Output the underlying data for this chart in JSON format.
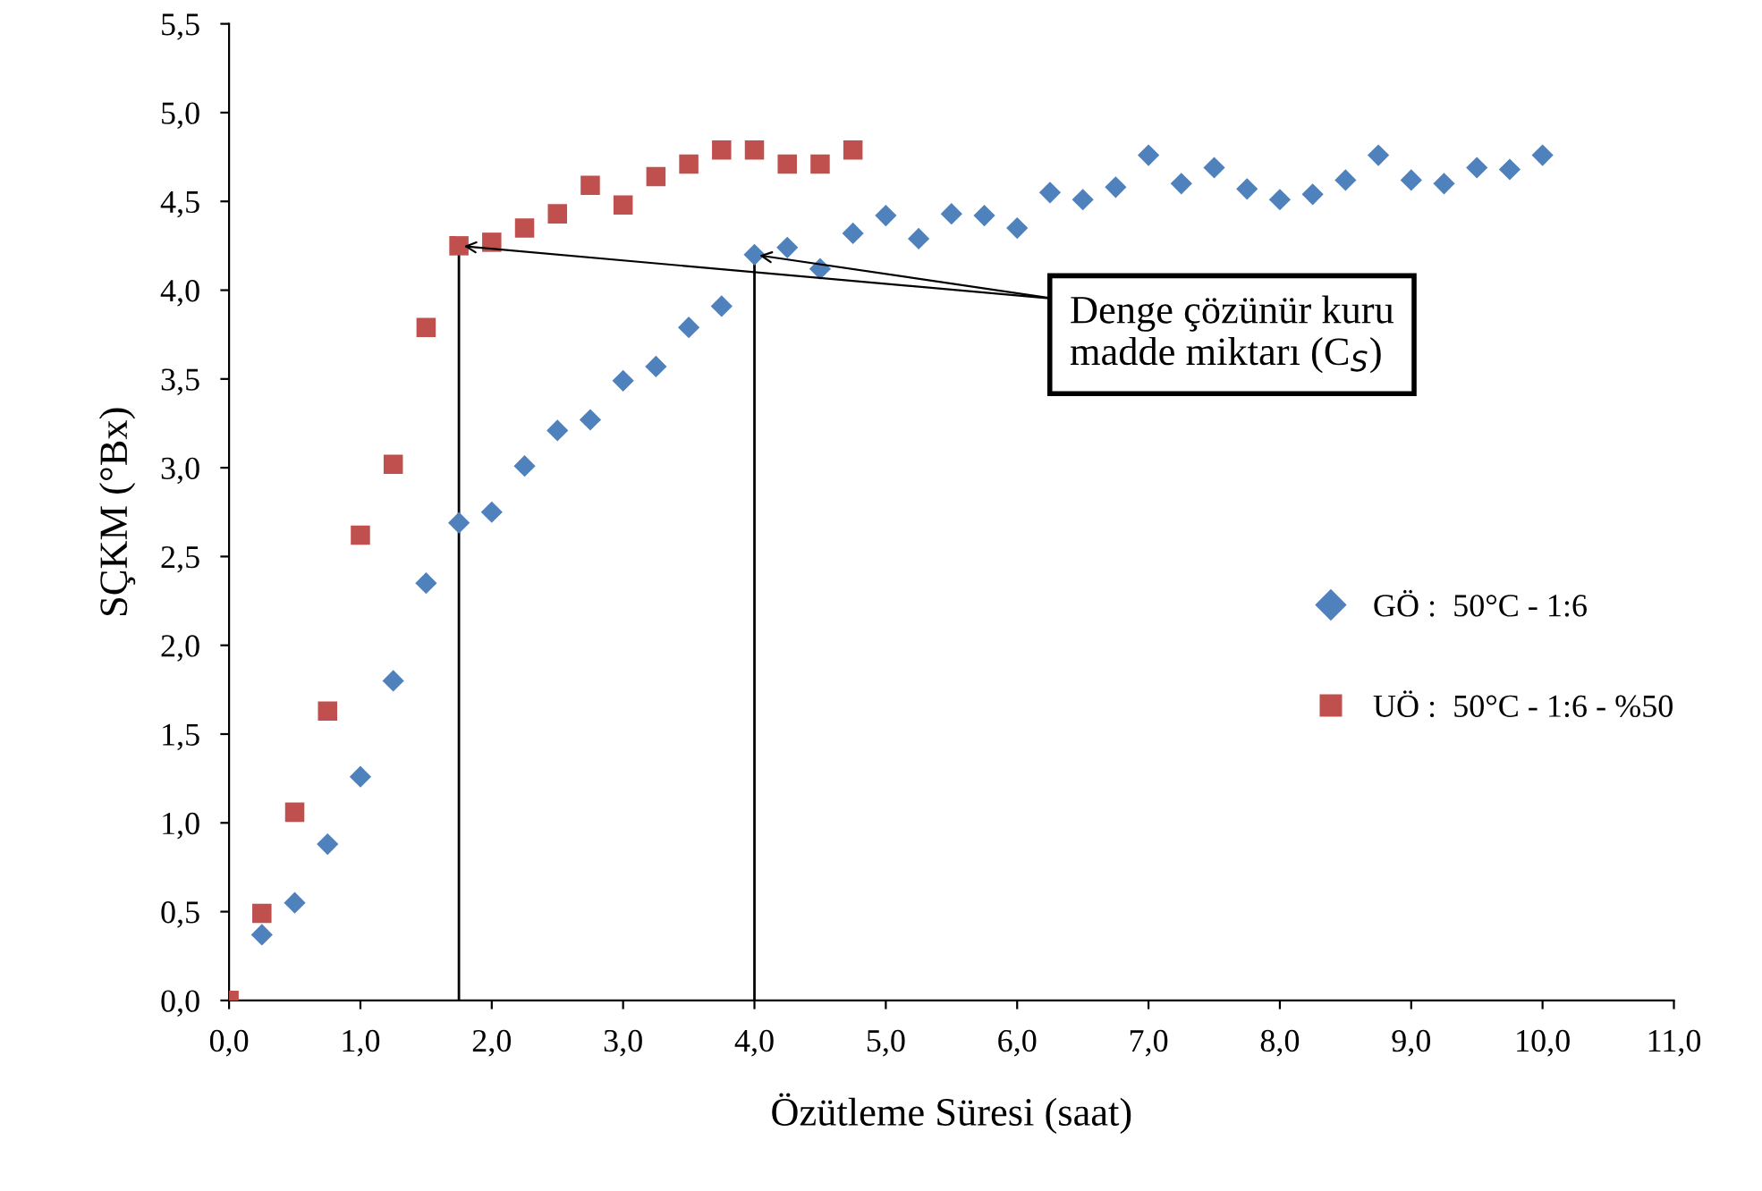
{
  "chart_data": {
    "type": "scatter",
    "xlabel": "Özütleme Süresi (saat)",
    "ylabel": "SÇKM (°Bx)",
    "series": [
      {
        "name": "GÖ :  50°C - 1:6",
        "color": "#4f81bd",
        "marker": "diamond",
        "x": [
          0.25,
          0.5,
          0.75,
          1.0,
          1.25,
          1.5,
          1.75,
          2.0,
          2.25,
          2.5,
          2.75,
          3.0,
          3.25,
          3.5,
          3.75,
          4.0,
          4.25,
          4.5,
          4.75,
          5.0,
          5.25,
          5.5,
          5.75,
          6.0,
          6.25,
          6.5,
          6.75,
          7.0,
          7.25,
          7.5,
          7.75,
          8.0,
          8.25,
          8.5,
          8.75,
          9.0,
          9.25,
          9.5,
          9.75,
          10.0
        ],
        "values": [
          0.37,
          0.55,
          0.88,
          1.26,
          1.8,
          2.35,
          2.69,
          2.75,
          3.01,
          3.21,
          3.27,
          3.49,
          3.57,
          3.79,
          3.91,
          4.2,
          4.24,
          4.12,
          4.32,
          4.42,
          4.29,
          4.43,
          4.42,
          4.35,
          4.55,
          4.51,
          4.58,
          4.76,
          4.6,
          4.69,
          4.57,
          4.51,
          4.54,
          4.62,
          4.76,
          4.62,
          4.6,
          4.69,
          4.68,
          4.76
        ]
      },
      {
        "name": "UÖ :  50°C - 1:6 - %50",
        "color": "#c0504d",
        "marker": "square",
        "x": [
          0.0,
          0.25,
          0.5,
          0.75,
          1.0,
          1.25,
          1.5,
          1.75,
          2.0,
          2.25,
          2.5,
          2.75,
          3.0,
          3.25,
          3.5,
          3.75,
          4.0,
          4.25,
          4.5,
          4.75
        ],
        "values": [
          0.0,
          0.49,
          1.06,
          1.63,
          2.62,
          3.02,
          3.79,
          4.25,
          4.27,
          4.35,
          4.43,
          4.59,
          4.48,
          4.64,
          4.71,
          4.79,
          4.79,
          4.71,
          4.71,
          4.79
        ]
      }
    ],
    "xlim": [
      0,
      11
    ],
    "ylim": [
      0,
      5.5
    ],
    "xticks": [
      {
        "value": 0,
        "label": "0,0"
      },
      {
        "value": 1,
        "label": "1,0"
      },
      {
        "value": 2,
        "label": "2,0"
      },
      {
        "value": 3,
        "label": "3,0"
      },
      {
        "value": 4,
        "label": "4,0"
      },
      {
        "value": 5,
        "label": "5,0"
      },
      {
        "value": 6,
        "label": "6,0"
      },
      {
        "value": 7,
        "label": "7,0"
      },
      {
        "value": 8,
        "label": "8,0"
      },
      {
        "value": 9,
        "label": "9,0"
      },
      {
        "value": 10,
        "label": "10,0"
      },
      {
        "value": 11,
        "label": "11,0"
      }
    ],
    "yticks": [
      {
        "value": 0,
        "label": "0,0"
      },
      {
        "value": 0.5,
        "label": "0,5"
      },
      {
        "value": 1,
        "label": "1,0"
      },
      {
        "value": 1.5,
        "label": "1,5"
      },
      {
        "value": 2,
        "label": "2,0"
      },
      {
        "value": 2.5,
        "label": "2,5"
      },
      {
        "value": 3,
        "label": "3,0"
      },
      {
        "value": 3.5,
        "label": "3,5"
      },
      {
        "value": 4,
        "label": "4,0"
      },
      {
        "value": 4.5,
        "label": "4,5"
      },
      {
        "value": 5,
        "label": "5,0"
      },
      {
        "value": 5.5,
        "label": "5,5"
      }
    ],
    "ref_lines": [
      {
        "axis": "x",
        "value": 1.75,
        "color": "#000000"
      },
      {
        "axis": "x",
        "value": 4.0,
        "color": "#000000"
      }
    ],
    "annotations": [
      {
        "text": "Denge çözünür kuru\nmadde miktarı (C$_{S}$)",
        "x": 4.0,
        "y": 4.2
      }
    ],
    "grid": false,
    "legend": "right"
  }
}
